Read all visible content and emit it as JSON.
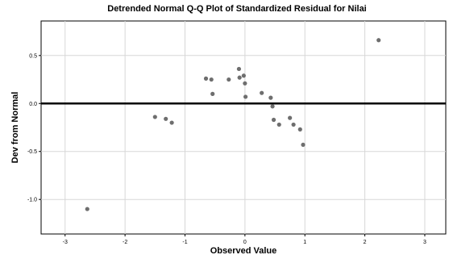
{
  "chart_data": {
    "type": "scatter",
    "title": "Detrended Normal Q-Q Plot of Standardized Residual for Nilai",
    "xlabel": "Observed Value",
    "ylabel": "Dev from Normal",
    "xlim": [
      -3.4,
      3.35
    ],
    "ylim": [
      -1.36,
      0.86
    ],
    "x_ticks": [
      -3,
      -2,
      -1,
      0,
      1,
      2,
      3
    ],
    "x_tick_labels": [
      "-3",
      "-2",
      "-1",
      "0",
      "1",
      "2",
      "3"
    ],
    "y_ticks": [
      -1.0,
      -0.5,
      0.0,
      0.5
    ],
    "y_tick_labels": [
      "-1.0",
      "-0.5",
      "0.0",
      "0.5"
    ],
    "grid": true,
    "reference_line_y": 0,
    "colors": {
      "point": "#6e6e6e",
      "grid": "#d7d7d7",
      "reference": "#000000"
    },
    "series": [
      {
        "x": [
          -2.63,
          -1.5,
          -1.32,
          -1.22,
          -0.65,
          -0.56,
          -0.54,
          -0.27,
          -0.1,
          -0.09,
          -0.02,
          0.0,
          0.01,
          0.28,
          0.43,
          0.46,
          0.48,
          0.57,
          0.75,
          0.81,
          0.92,
          0.97,
          2.23
        ],
        "y": [
          -1.1,
          -0.14,
          -0.16,
          -0.2,
          0.26,
          0.25,
          0.1,
          0.25,
          0.36,
          0.27,
          0.29,
          0.21,
          0.07,
          0.11,
          0.06,
          -0.03,
          -0.17,
          -0.22,
          -0.15,
          -0.22,
          -0.27,
          -0.43,
          0.66
        ]
      }
    ]
  }
}
